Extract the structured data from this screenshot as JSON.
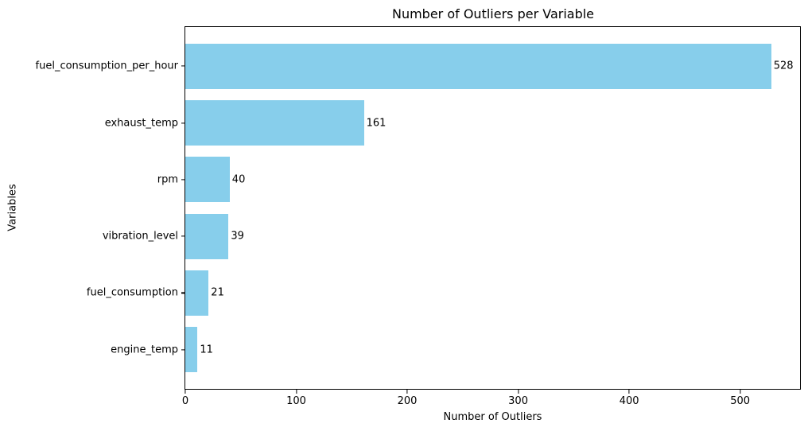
{
  "chart_data": {
    "type": "bar",
    "orientation": "horizontal",
    "title": "Number of Outliers per Variable",
    "xlabel": "Number of Outliers",
    "ylabel": "Variables",
    "categories": [
      "fuel_consumption_per_hour",
      "exhaust_temp",
      "rpm",
      "vibration_level",
      "fuel_consumption",
      "engine_temp"
    ],
    "values": [
      528,
      161,
      40,
      39,
      21,
      11
    ],
    "value_labels": [
      "528",
      "161",
      "40",
      "39",
      "21",
      "11"
    ],
    "xticks": [
      0,
      100,
      200,
      300,
      400,
      500
    ],
    "xlim": [
      0,
      554
    ],
    "grid": false,
    "legend": null,
    "bar_color": "#87CEEB",
    "text_color": "#000000",
    "spine_color": "#000000",
    "background_color": "#ffffff"
  }
}
